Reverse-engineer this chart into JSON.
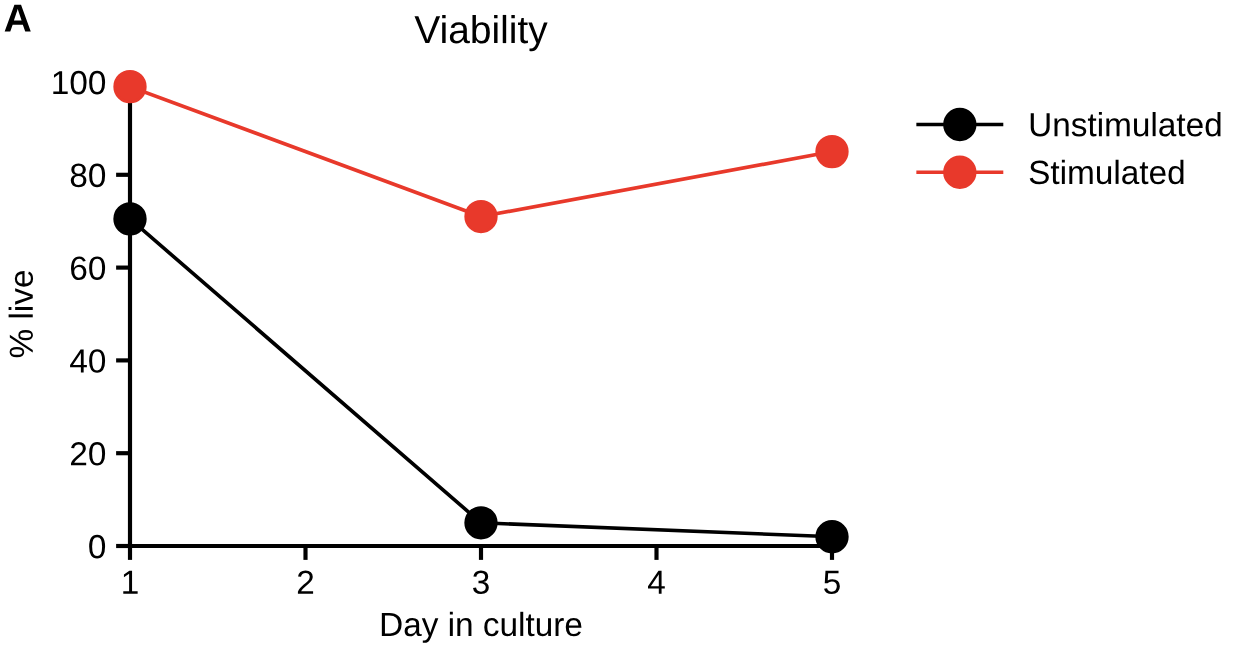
{
  "chart_data": {
    "type": "line",
    "title": "Viability",
    "xlabel": "Day in culture",
    "ylabel": "% live",
    "annotations": [
      "A"
    ],
    "x": [
      1,
      3,
      5
    ],
    "series": [
      {
        "name": "Unstimulated",
        "color": "#000000",
        "values": [
          70.5,
          5,
          2
        ]
      },
      {
        "name": "Stimulated",
        "color": "#e8392b",
        "values": [
          99,
          71,
          85
        ]
      }
    ],
    "xlim": [
      1,
      5
    ],
    "xticks": [
      1,
      2,
      3,
      4,
      5
    ],
    "ylim": [
      0,
      100
    ],
    "yticks": [
      0,
      20,
      40,
      60,
      80,
      100
    ],
    "grid": false,
    "legend": "top right",
    "marker": "circle",
    "line_style": "solid"
  }
}
